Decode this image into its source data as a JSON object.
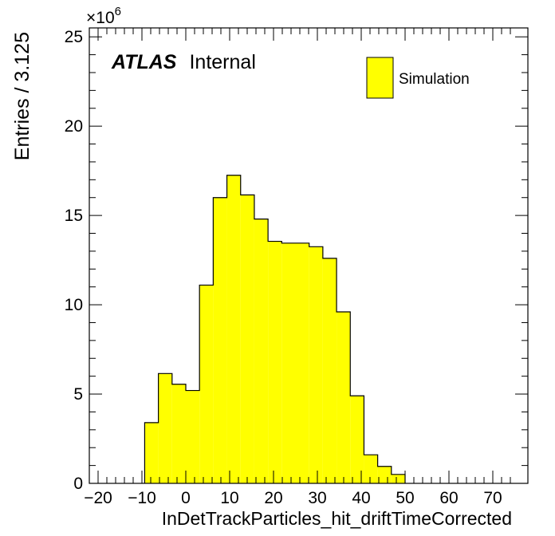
{
  "chart_data": {
    "type": "bar",
    "xlabel": "InDetTrackParticles_hit_driftTimeCorrected",
    "ylabel": "Entries / 3.125",
    "xlim": [
      -22,
      78
    ],
    "ylim": [
      0,
      25.5
    ],
    "y_scale_prefix": "×10",
    "y_scale_exp": "6",
    "x_tick_labels": [
      "−20",
      "−10",
      "0",
      "10",
      "20",
      "30",
      "40",
      "50",
      "60",
      "70"
    ],
    "x_ticks": [
      -20,
      -10,
      0,
      10,
      20,
      30,
      40,
      50,
      60,
      70
    ],
    "y_tick_labels": [
      "0",
      "5",
      "10",
      "15",
      "20",
      "25"
    ],
    "y_ticks": [
      0,
      5,
      10,
      15,
      20,
      25
    ],
    "bin_width": 3.125,
    "bin_start": -9.375,
    "values": [
      3.4,
      6.15,
      5.55,
      5.2,
      11.1,
      16.0,
      17.25,
      16.15,
      14.8,
      13.55,
      13.45,
      13.45,
      13.25,
      12.6,
      9.6,
      4.9,
      1.6,
      0.95,
      0.5
    ],
    "fill_color": "#ffff00",
    "edge_color": "#000000",
    "legend": {
      "position": "top-right",
      "label": "Simulation"
    }
  },
  "label": {
    "experiment": "ATLAS",
    "status": "Internal"
  }
}
